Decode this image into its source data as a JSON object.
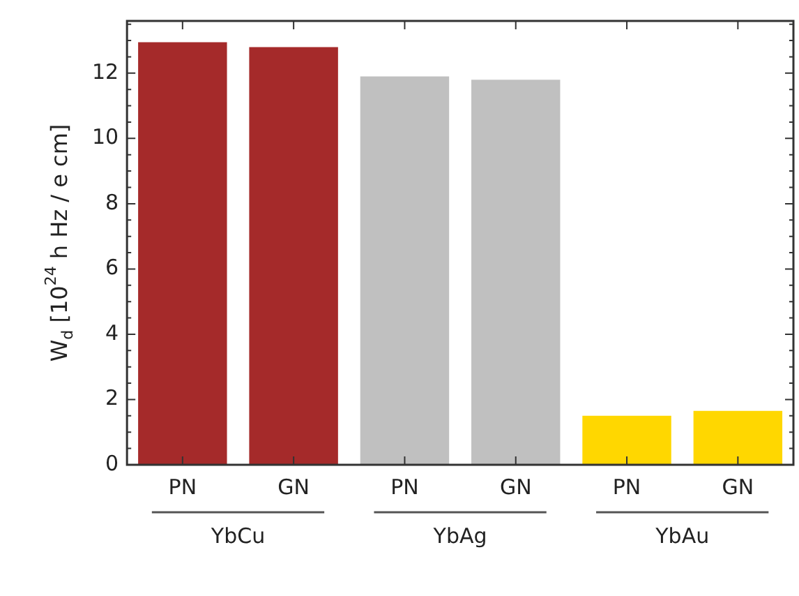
{
  "chart_data": {
    "type": "bar",
    "ylabel": "W$_{d}$ [10$^{24}$ h Hz / e cm]",
    "categories": [
      "PN",
      "GN",
      "PN",
      "GN",
      "PN",
      "GN"
    ],
    "values": [
      12.95,
      12.8,
      11.9,
      11.8,
      1.5,
      1.65
    ],
    "colors": [
      "#a52a2a",
      "#a52a2a",
      "#c0c0c0",
      "#c0c0c0",
      "#ffd700",
      "#ffd700"
    ],
    "annotations": [
      "YbCu",
      "YbAg",
      "YbAu"
    ],
    "ylim": [
      0,
      13.6
    ],
    "yticks": [
      0,
      {
        "value": 0.5,
        "label": null
      },
      {
        "value": 1,
        "label": null
      },
      {
        "value": 1.5,
        "label": null
      },
      2,
      {
        "value": 2.5,
        "label": null
      },
      {
        "value": 3,
        "label": null
      },
      {
        "value": 3.5,
        "label": null
      },
      4,
      {
        "value": 4.5,
        "label": null
      },
      {
        "value": 5,
        "label": null
      },
      {
        "value": 5.5,
        "label": null
      },
      6,
      {
        "value": 6.5,
        "label": null
      },
      {
        "value": 7,
        "label": null
      },
      {
        "value": 7.5,
        "label": null
      },
      8,
      {
        "value": 8.5,
        "label": null
      },
      {
        "value": 9,
        "label": null
      },
      {
        "value": 9.5,
        "label": null
      },
      10,
      {
        "value": 10.5,
        "label": null
      },
      {
        "value": 11,
        "label": null
      },
      {
        "value": 11.5,
        "label": null
      },
      12,
      {
        "value": 12.5,
        "label": null
      },
      {
        "value": 13,
        "label": null
      },
      {
        "value": 13.5,
        "label": null
      }
    ],
    "grid": false,
    "legend": false
  }
}
